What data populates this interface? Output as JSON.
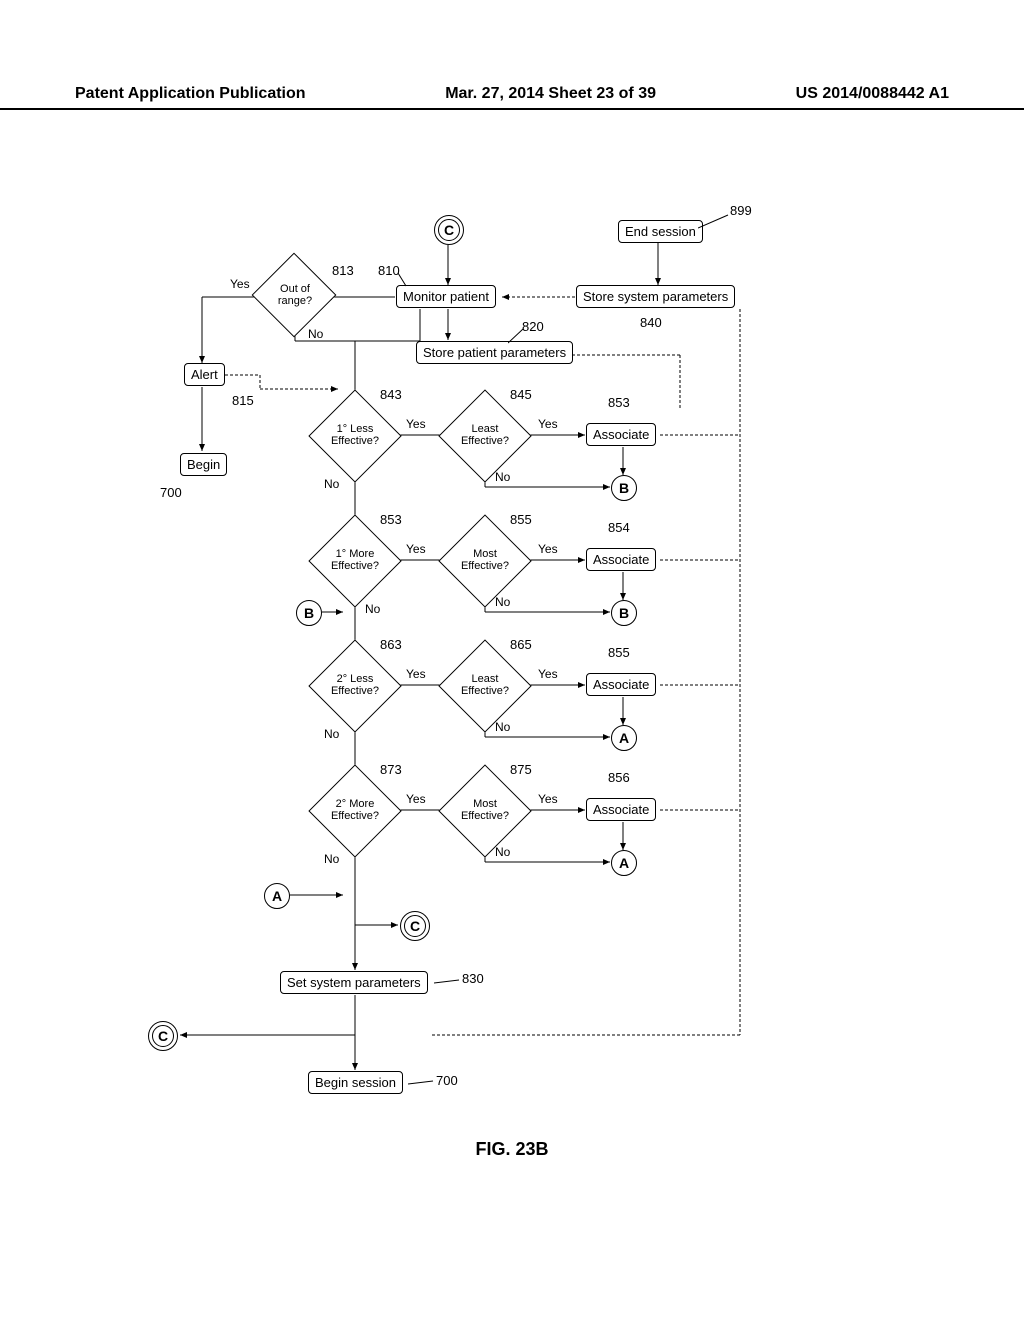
{
  "header": {
    "left": "Patent Application Publication",
    "center": "Mar. 27, 2014  Sheet 23 of 39",
    "right": "US 2014/0088442 A1"
  },
  "figure_label": "FIG. 23B",
  "nodes": {
    "end_session": {
      "text": "End session",
      "ref": "899"
    },
    "monitor_patient": {
      "text": "Monitor patient",
      "ref": "810"
    },
    "store_sys_params": {
      "text": "Store system parameters",
      "ref": "840"
    },
    "store_patient_params": {
      "text": "Store patient parameters",
      "ref": "820"
    },
    "out_of_range": {
      "text": "Out of\nrange?",
      "ref": "813"
    },
    "alert": {
      "text": "Alert",
      "ref": "815"
    },
    "begin": {
      "text": "Begin",
      "ref": "700"
    },
    "set_sys_params": {
      "text": "Set system parameters",
      "ref": "830"
    },
    "begin_session": {
      "text": "Begin session",
      "ref": "700"
    },
    "d843": {
      "text": "1° Less\nEffective?",
      "ref": "843"
    },
    "d845": {
      "text": "Least\nEffective?",
      "ref": "845"
    },
    "d853": {
      "text": "1° More\nEffective?",
      "ref": "853"
    },
    "d855": {
      "text": "Most\nEffective?",
      "ref": "855"
    },
    "d863": {
      "text": "2° Less\nEffective?",
      "ref": "863"
    },
    "d865": {
      "text": "Least\nEffective?",
      "ref": "865"
    },
    "d873": {
      "text": "2° More\nEffective?",
      "ref": "873"
    },
    "d875": {
      "text": "Most\nEffective?",
      "ref": "875"
    },
    "assoc1": {
      "text": "Associate",
      "ref": "853"
    },
    "assoc2": {
      "text": "Associate",
      "ref": "854"
    },
    "assoc3": {
      "text": "Associate",
      "ref": "855"
    },
    "assoc4": {
      "text": "Associate",
      "ref": "856"
    }
  },
  "labels": {
    "yes": "Yes",
    "no": "No"
  },
  "connectors": {
    "C": "C",
    "B": "B",
    "A": "A"
  }
}
